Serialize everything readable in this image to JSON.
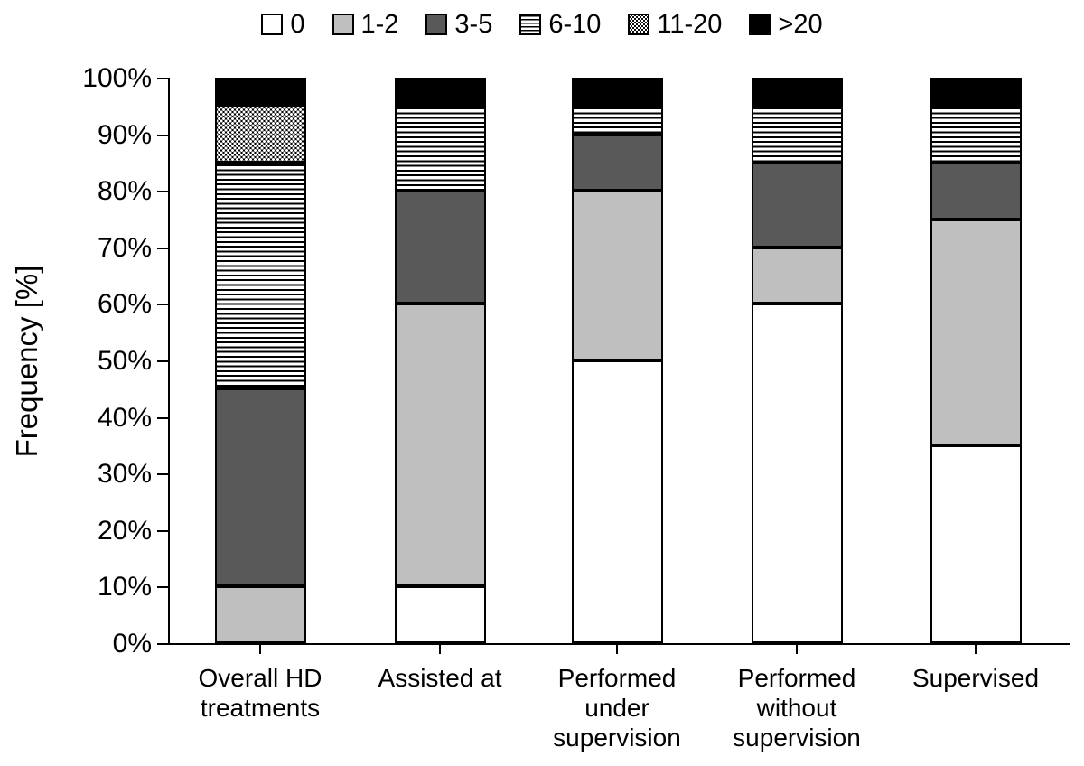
{
  "chart_data": {
    "type": "bar",
    "stacked": true,
    "orientation": "vertical",
    "title": "",
    "xlabel": "",
    "ylabel": "Frequency [%]",
    "ylim": [
      0,
      100
    ],
    "ytick_step": 10,
    "yticks": [
      "0%",
      "10%",
      "20%",
      "30%",
      "40%",
      "50%",
      "60%",
      "70%",
      "80%",
      "90%",
      "100%"
    ],
    "grid": false,
    "legend_position": "top",
    "categories": [
      "Overall HD\ntreatments",
      "Assisted at",
      "Performed\nunder\nsupervision",
      "Performed\nwithout\nsupervision",
      "Supervised"
    ],
    "series": [
      {
        "name": "0",
        "swatch": "fill-white",
        "fill": "#ffffff",
        "values": [
          0,
          10,
          50,
          60,
          35
        ]
      },
      {
        "name": "1-2",
        "swatch": "fill-lightgray",
        "fill": "#bfbfbf",
        "values": [
          10,
          50,
          30,
          10,
          40
        ]
      },
      {
        "name": "3-5",
        "swatch": "fill-darkgray",
        "fill": "#595959",
        "values": [
          35,
          20,
          10,
          15,
          10
        ]
      },
      {
        "name": "6-10",
        "swatch": "pattern-hlines",
        "fill": "horizontal-stripes-black-on-white",
        "values": [
          40,
          15,
          5,
          10,
          10
        ]
      },
      {
        "name": "11-20",
        "swatch": "pattern-dots",
        "fill": "white-dots-on-black",
        "values": [
          10,
          0,
          0,
          0,
          0
        ]
      },
      {
        "name": ">20",
        "swatch": "fill-black",
        "fill": "#000000",
        "values": [
          5,
          5,
          5,
          5,
          5
        ]
      }
    ],
    "colors": {
      "axis": "#000000",
      "text": "#000000",
      "background": "#ffffff"
    }
  }
}
